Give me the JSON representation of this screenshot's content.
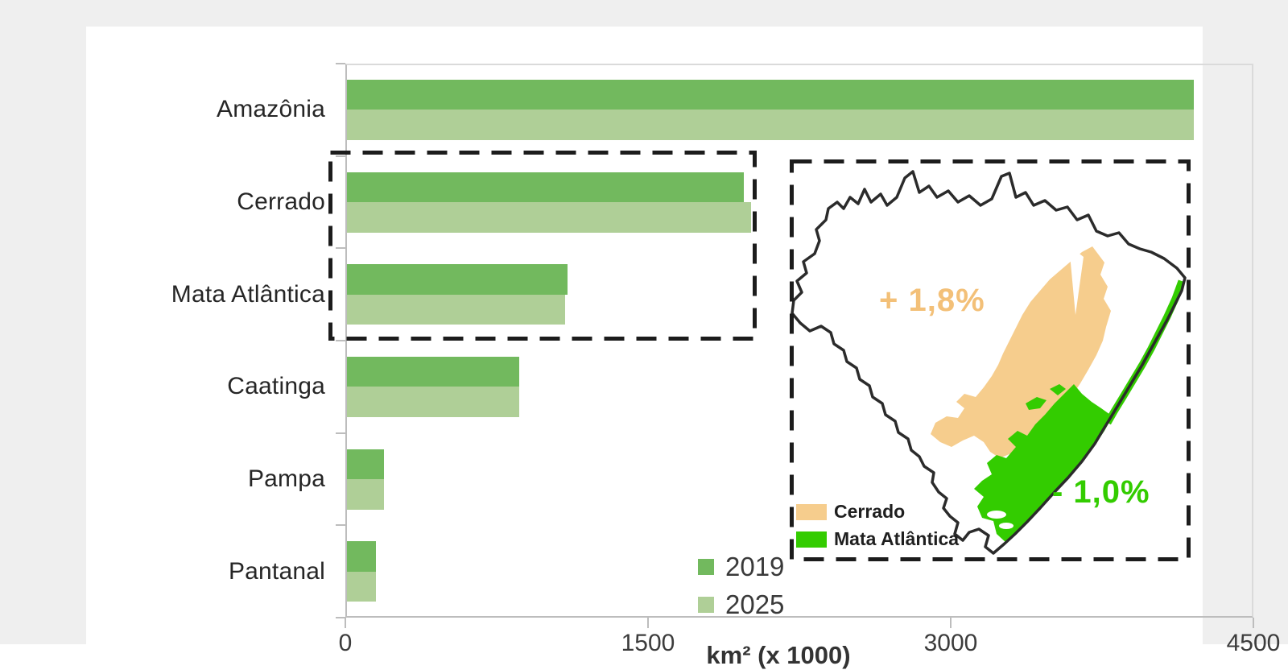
{
  "colors": {
    "background": "#efefef",
    "card": "#ffffff",
    "axis": "#bdbdbd",
    "plot_border": "#dadada",
    "dash_box": "#1c1c1c",
    "text_primary": "#262626",
    "tick_text": "#3c3c3c"
  },
  "chart_data": {
    "type": "bar",
    "orientation": "horizontal",
    "categories": [
      "Amazônia",
      "Cerrado",
      "Mata Atlântica",
      "Caatinga",
      "Pampa",
      "Pantanal"
    ],
    "series": [
      {
        "name": "2019",
        "color": "#72b95e",
        "values": [
          4210,
          1975,
          1095,
          855,
          185,
          145
        ]
      },
      {
        "name": "2025",
        "color": "#afcf97",
        "values": [
          4210,
          2010,
          1085,
          855,
          185,
          145
        ]
      }
    ],
    "xlabel": "km² (x 1000)",
    "x_ticks": [
      0,
      1500,
      3000,
      4500
    ],
    "xlim": [
      0,
      4500
    ],
    "legend": {
      "entries": [
        "2019",
        "2025"
      ],
      "position": "bottom-center"
    },
    "grid": false,
    "highlighted_categories": [
      "Cerrado",
      "Mata Atlântica"
    ]
  },
  "map_inset": {
    "country": "Brazil",
    "regions": [
      {
        "name": "Cerrado",
        "color": "#f6cd8d",
        "change_label": "+ 1,8%",
        "label_color": "#f3c078"
      },
      {
        "name": "Mata Atlântica",
        "color": "#33cc00",
        "change_label": "- 1,0%",
        "label_color": "#33cc00"
      }
    ],
    "legend": [
      {
        "label": "Cerrado",
        "color": "#f6cd8d"
      },
      {
        "label": "Mata Atlântica",
        "color": "#33cc00"
      }
    ]
  }
}
